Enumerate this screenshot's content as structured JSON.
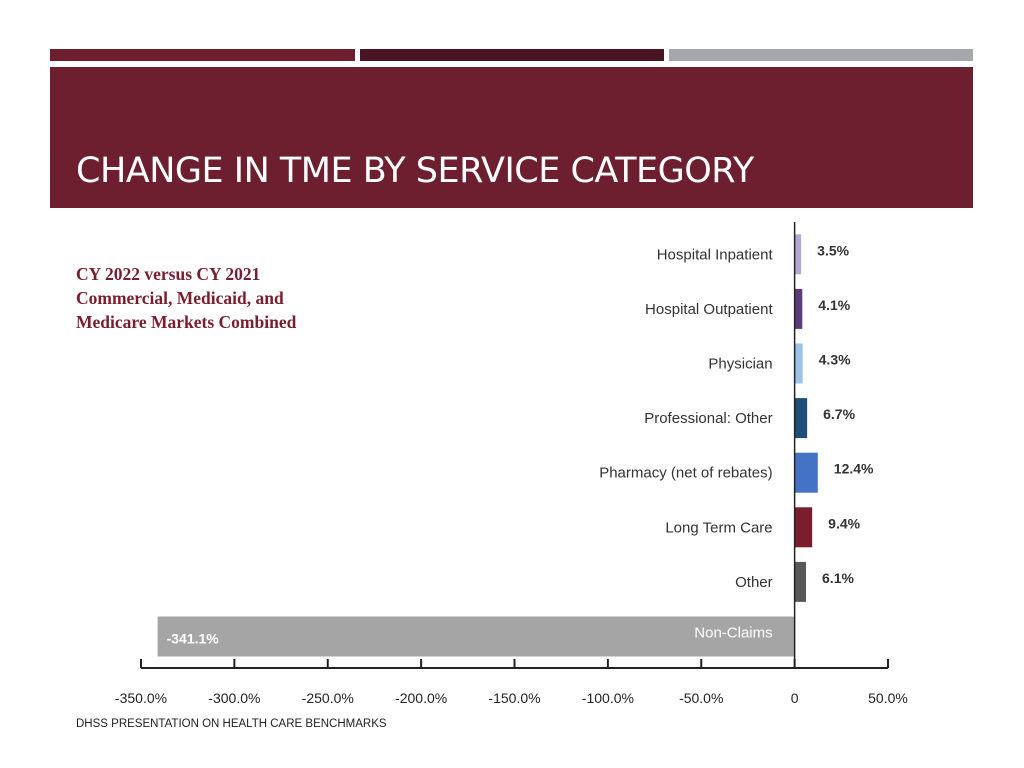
{
  "slide": {
    "title": "CHANGE IN TME BY SERVICE CATEGORY",
    "subtitle_lines": [
      "CY 2022 versus CY 2021",
      "Commercial, Medicaid, and",
      "Medicare Markets Combined"
    ],
    "footer": "DHSS PRESENTATION ON HEALTH CARE BENCHMARKS",
    "colors": {
      "header": "#6d1f2f",
      "strip_1": "#6d1f2f",
      "strip_2": "#4a1522",
      "strip_3": "#a5a7aa",
      "subtitle": "#7a1e2e"
    }
  },
  "chart_data": {
    "type": "bar",
    "orientation": "horizontal",
    "title": "",
    "xlabel": "",
    "ylabel": "",
    "xlim": [
      -350,
      50
    ],
    "grid": false,
    "categories": [
      "Hospital Inpatient",
      "Hospital Outpatient",
      "Physician",
      "Professional: Other",
      "Pharmacy (net of rebates)",
      "Long Term Care",
      "Other",
      "Non-Claims"
    ],
    "values": [
      3.5,
      4.1,
      4.3,
      6.7,
      12.4,
      9.4,
      6.1,
      -341.1
    ],
    "value_labels": [
      "3.5%",
      "4.1%",
      "4.3%",
      "6.7%",
      "12.4%",
      "9.4%",
      "6.1%",
      "-341.1%"
    ],
    "bar_colors": [
      "#b3a9d4",
      "#5b3a7e",
      "#9dc3e6",
      "#1f4e79",
      "#4472c4",
      "#7a1e2e",
      "#595959",
      "#a5a5a5"
    ],
    "x_ticks": [
      -350,
      -300,
      -250,
      -200,
      -150,
      -100,
      -50,
      0,
      50
    ],
    "x_tick_labels": [
      "-350.0%",
      "-300.0%",
      "-250.0%",
      "-200.0%",
      "-150.0%",
      "-100.0%",
      "-50.0%",
      "0",
      "50.0%"
    ]
  }
}
